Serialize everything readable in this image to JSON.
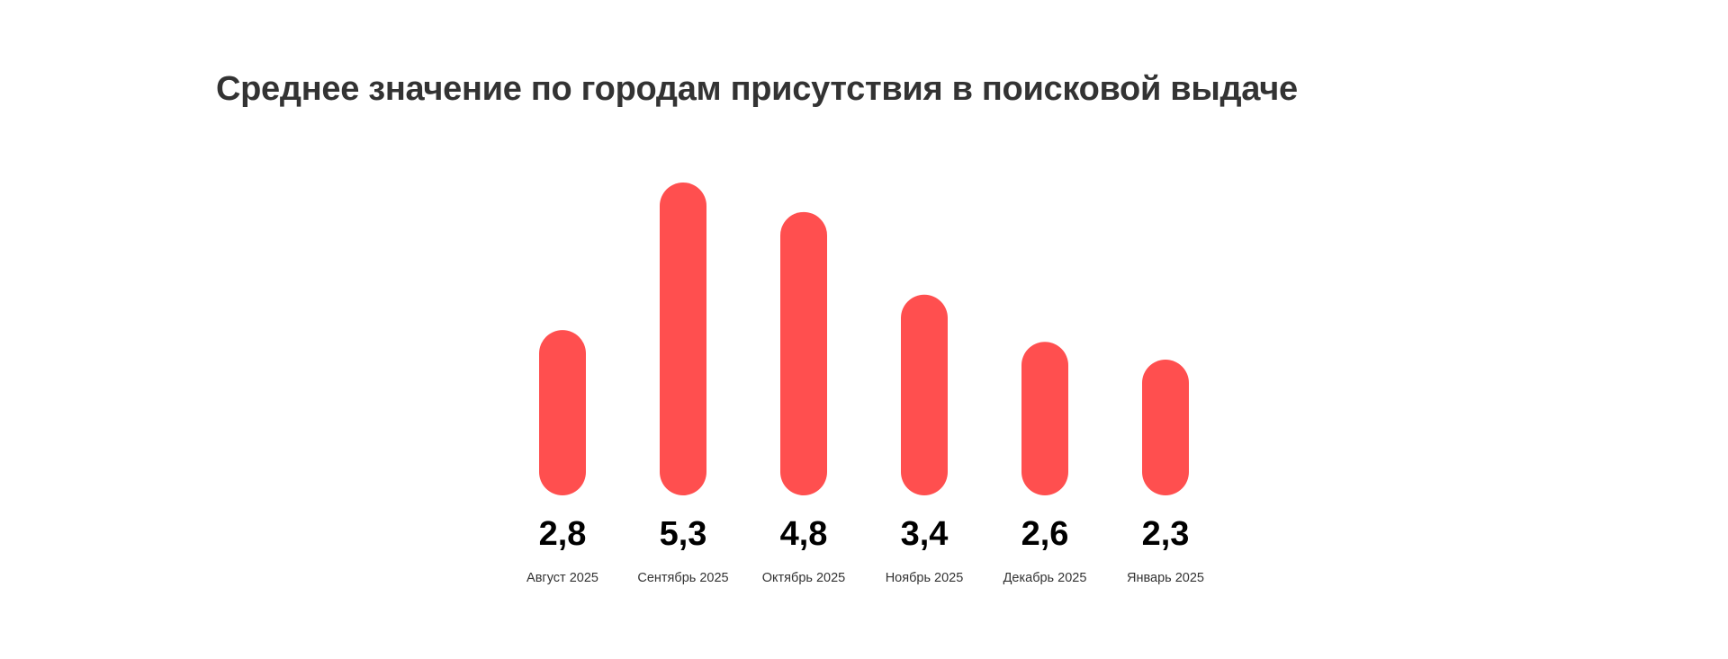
{
  "chart_data": {
    "type": "bar",
    "title": "Среднее значение по городам присутствия в поисковой выдаче",
    "categories": [
      "Август 2025",
      "Сентябрь 2025",
      "Октябрь 2025",
      "Ноябрь 2025",
      "Декабрь 2025",
      "Январь 2025"
    ],
    "values": [
      2.8,
      5.3,
      4.8,
      3.4,
      2.6,
      2.3
    ],
    "value_labels": [
      "2,8",
      "5,3",
      "4,8",
      "3,4",
      "2,6",
      "2,3"
    ],
    "xlabel": "",
    "ylabel": "",
    "ylim": [
      0,
      5.3
    ],
    "grid": false,
    "bar_color": "#FF4F4F"
  }
}
